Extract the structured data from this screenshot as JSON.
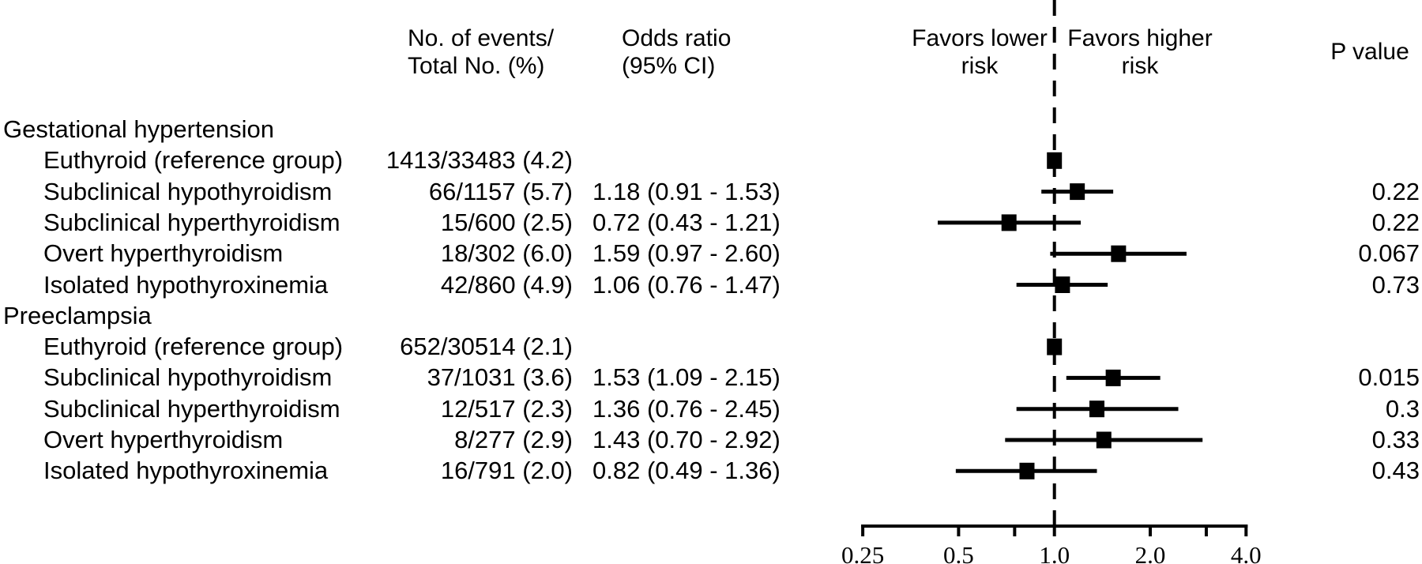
{
  "figure": {
    "type_note": "forest plot of odds ratios, black on white",
    "columns": {
      "events_header_line1": "No. of events/",
      "events_header_line2": "Total No. (%)",
      "or_header_line1": "Odds ratio",
      "or_header_line2": "(95% CI)",
      "favors_lower_line1": "Favors lower",
      "favors_lower_line2": "risk",
      "favors_higher_line1": "Favors higher",
      "favors_higher_line2": "risk",
      "p_header": "P value"
    }
  },
  "chart_data": {
    "type": "scatter",
    "subtype": "forest-plot",
    "x_scale": "log2",
    "xlim": [
      0.25,
      4.0
    ],
    "reference_line": 1.0,
    "axis": {
      "ticks": [
        {
          "v": 0.25,
          "label": "0.25"
        },
        {
          "v": 0.5,
          "label": "0.5"
        },
        {
          "v": 0.75,
          "label": ""
        },
        {
          "v": 1.0,
          "label": "1.0"
        },
        {
          "v": 2.0,
          "label": "2.0"
        },
        {
          "v": 3.0,
          "label": ""
        },
        {
          "v": 4.0,
          "label": "4.0"
        }
      ]
    },
    "annotations": {
      "left_of_reference": "Favors lower risk",
      "right_of_reference": "Favors higher risk"
    },
    "rows": [
      {
        "kind": "group",
        "label": "Gestational hypertension"
      },
      {
        "kind": "item",
        "label": "Euthyroid (reference group)",
        "events": "1413/33483 (4.2)",
        "ref": true,
        "or": 1.0
      },
      {
        "kind": "item",
        "label": "Subclinical hypothyroidism",
        "events": "66/1157 (5.7)",
        "or_text": "1.18 (0.91 - 1.53)",
        "or": 1.18,
        "lo": 0.91,
        "hi": 1.53,
        "p": "0.22"
      },
      {
        "kind": "item",
        "label": "Subclinical hyperthyroidism",
        "events": "15/600 (2.5)",
        "or_text": "0.72 (0.43 - 1.21)",
        "or": 0.72,
        "lo": 0.43,
        "hi": 1.21,
        "p": "0.22"
      },
      {
        "kind": "item",
        "label": "Overt hyperthyroidism",
        "events": "18/302 (6.0)",
        "or_text": "1.59 (0.97 - 2.60)",
        "or": 1.59,
        "lo": 0.97,
        "hi": 2.6,
        "p": "0.067"
      },
      {
        "kind": "item",
        "label": "Isolated hypothyroxinemia",
        "events": "42/860 (4.9)",
        "or_text": "1.06 (0.76 - 1.47)",
        "or": 1.06,
        "lo": 0.76,
        "hi": 1.47,
        "p": "0.73"
      },
      {
        "kind": "group",
        "label": "Preeclampsia"
      },
      {
        "kind": "item",
        "label": "Euthyroid (reference group)",
        "events": "652/30514 (2.1)",
        "ref": true,
        "or": 1.0
      },
      {
        "kind": "item",
        "label": "Subclinical hypothyroidism",
        "events": "37/1031 (3.6)",
        "or_text": "1.53 (1.09 - 2.15)",
        "or": 1.53,
        "lo": 1.09,
        "hi": 2.15,
        "p": "0.015"
      },
      {
        "kind": "item",
        "label": "Subclinical hyperthyroidism",
        "events": "12/517 (2.3)",
        "or_text": "1.36 (0.76 - 2.45)",
        "or": 1.36,
        "lo": 0.76,
        "hi": 2.45,
        "p": "0.3"
      },
      {
        "kind": "item",
        "label": "Overt hyperthyroidism",
        "events": "8/277 (2.9)",
        "or_text": "1.43 (0.70 - 2.92)",
        "or": 1.43,
        "lo": 0.7,
        "hi": 2.92,
        "p": "0.33"
      },
      {
        "kind": "item",
        "label": "Isolated hypothyroxinemia",
        "events": "16/791 (2.0)",
        "or_text": "0.82 (0.49 - 1.36)",
        "or": 0.82,
        "lo": 0.49,
        "hi": 1.36,
        "p": "0.43"
      }
    ],
    "colors": {
      "marks": "#000000",
      "background": "#ffffff"
    }
  }
}
